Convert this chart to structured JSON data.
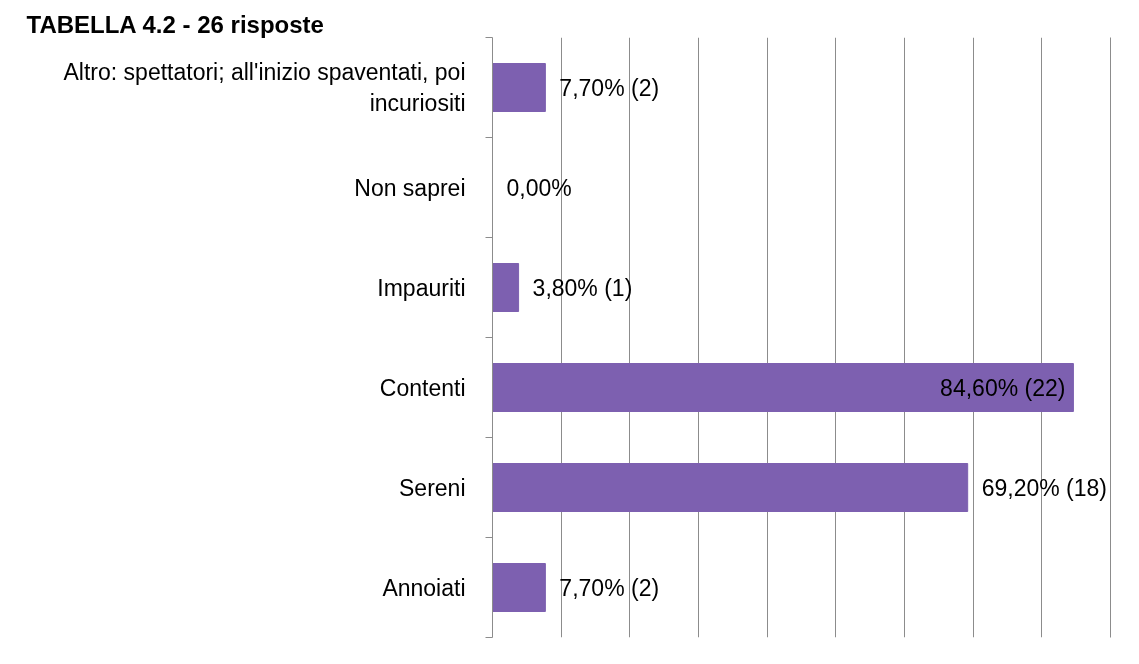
{
  "chart_data": {
    "type": "bar",
    "orientation": "horizontal",
    "title": "TABELLA 4.2 - 26 risposte",
    "categories": [
      "Altro: spettatori; all'inizio spaventati, poi incuriositi",
      "Non saprei",
      "Impauriti",
      "Contenti",
      "Sereni",
      "Annoiati"
    ],
    "values": [
      7.7,
      0,
      3.8,
      84.6,
      69.2,
      7.7
    ],
    "value_labels": [
      "7,70% (2)",
      "0,00%",
      "3,80% (1)",
      "84,60% (22)",
      "69,20% (18)",
      "7,70% (2)"
    ],
    "color": "#7d60b0",
    "xlim": [
      0,
      90
    ],
    "xticks": [
      0,
      10,
      20,
      30,
      40,
      50,
      60,
      70,
      80,
      90
    ],
    "grid": "x",
    "tick_labels": "y"
  }
}
